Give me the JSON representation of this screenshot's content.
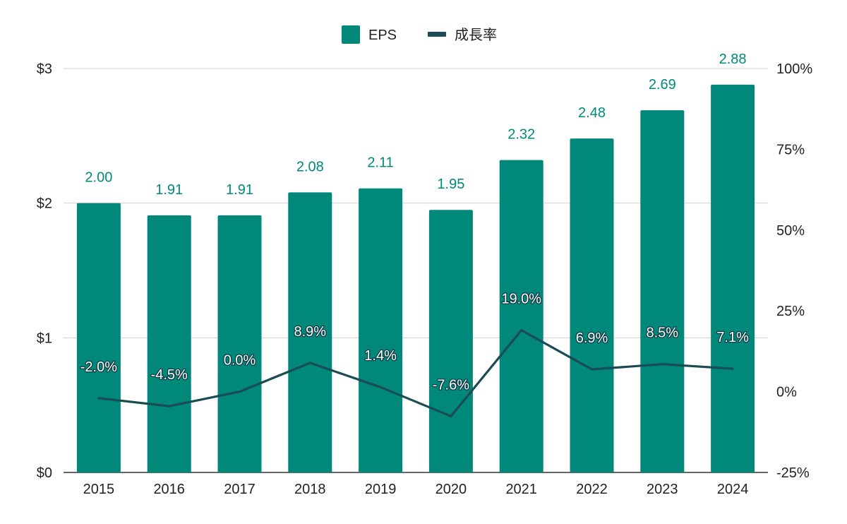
{
  "colors": {
    "eps": "#00897b",
    "growth": "#1b4b55",
    "grid": "#d0d0d0",
    "axis": "#333333"
  },
  "chart_data": {
    "type": "bar",
    "categories": [
      "2015",
      "2016",
      "2017",
      "2018",
      "2019",
      "2020",
      "2021",
      "2022",
      "2023",
      "2024"
    ],
    "series": [
      {
        "name": "EPS",
        "type": "bar",
        "axis": "left",
        "values": [
          2.0,
          1.91,
          1.91,
          2.08,
          2.11,
          1.95,
          2.32,
          2.48,
          2.69,
          2.88
        ],
        "labels": [
          "2.00",
          "1.91",
          "1.91",
          "2.08",
          "2.11",
          "1.95",
          "2.32",
          "2.48",
          "2.69",
          "2.88"
        ]
      },
      {
        "name": "成長率",
        "type": "line",
        "axis": "right",
        "values": [
          -2.0,
          -4.5,
          0.0,
          8.9,
          1.4,
          -7.6,
          19.0,
          6.9,
          8.5,
          7.1
        ],
        "labels": [
          "-2.0%",
          "-4.5%",
          "0.0%",
          "8.9%",
          "1.4%",
          "-7.6%",
          "19.0%",
          "6.9%",
          "8.5%",
          "7.1%"
        ]
      }
    ],
    "left_axis": {
      "ylim": [
        0,
        3
      ],
      "ticks": [
        0,
        1,
        2,
        3
      ],
      "tick_labels": [
        "$0",
        "$1",
        "$2",
        "$3"
      ]
    },
    "right_axis": {
      "ylim": [
        -25,
        100
      ],
      "ticks": [
        -25,
        0,
        25,
        50,
        75,
        100
      ],
      "tick_labels": [
        "-25%",
        "0%",
        "25%",
        "50%",
        "75%",
        "100%"
      ]
    },
    "grid": true,
    "legend": {
      "position": "top-center"
    }
  }
}
